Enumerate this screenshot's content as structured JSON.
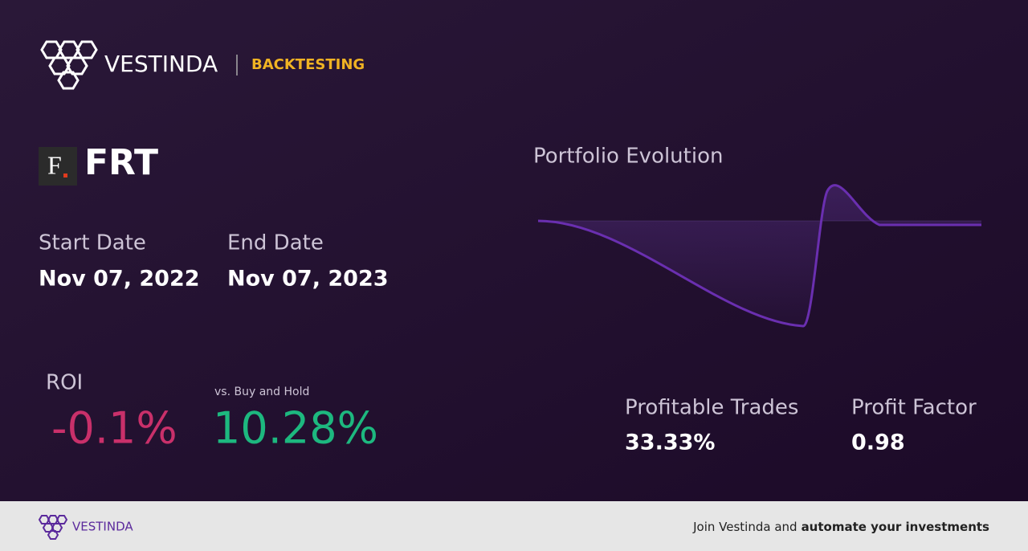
{
  "header": {
    "brand": "VESTINDA",
    "section": "BACKTESTING"
  },
  "ticker": {
    "logo": "F",
    "symbol": "FRT"
  },
  "dates": {
    "start_label": "Start Date",
    "start": "Nov 07, 2022",
    "end_label": "End Date",
    "end": "Nov 07, 2023"
  },
  "roi": {
    "label": "ROI",
    "value": "-0.1%",
    "benchmark_label": "vs. Buy and Hold",
    "benchmark": "10.28%"
  },
  "chart": {
    "title": "Portfolio Evolution"
  },
  "stats": [
    {
      "label": "Profitable Trades",
      "value": "33.33%"
    },
    {
      "label": "Profit Factor",
      "value": "0.98"
    }
  ],
  "footer": {
    "brand": "VESTINDA",
    "cta_prefix": "Join Vestinda and",
    "cta_bold": "automate your investments"
  }
}
